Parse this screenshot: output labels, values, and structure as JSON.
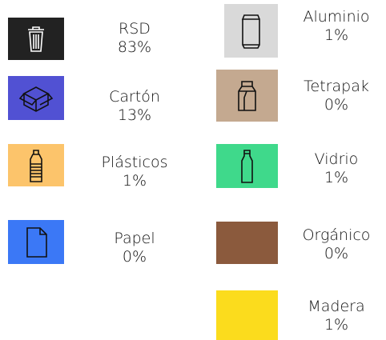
{
  "items": [
    {
      "label": "RSD",
      "value": "83%",
      "color": "#222222"
    },
    {
      "label": "Cartón",
      "value": "13%",
      "color": "#5151d3"
    },
    {
      "label": "Plásticos",
      "value": "1%",
      "color": "#fcc46b"
    },
    {
      "label": "Papel",
      "value": "0%",
      "color": "#3b78f6"
    },
    {
      "label": "Aluminio",
      "value": "1%",
      "color": "#d9d9d9"
    },
    {
      "label": "Tetrapak",
      "value": "0%",
      "color": "#c4a990"
    },
    {
      "label": "Vidrio",
      "value": "1%",
      "color": "#3fd98b"
    },
    {
      "label": "Orgánico",
      "value": "0%",
      "color": "#8b5a3d"
    },
    {
      "label": "Madera",
      "value": "1%",
      "color": "#fbdc1d"
    }
  ]
}
